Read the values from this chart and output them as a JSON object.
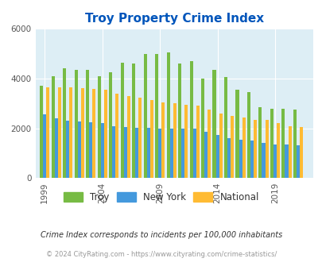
{
  "title": "Troy Property Crime Index",
  "years": [
    1999,
    2000,
    2001,
    2002,
    2003,
    2004,
    2005,
    2006,
    2007,
    2008,
    2009,
    2010,
    2011,
    2012,
    2013,
    2014,
    2015,
    2016,
    2017,
    2018,
    2019,
    2020,
    2021
  ],
  "troy": [
    3700,
    4100,
    4400,
    4350,
    4350,
    4100,
    4250,
    4650,
    4600,
    5000,
    5000,
    5050,
    4600,
    4700,
    4000,
    4350,
    4050,
    3550,
    3450,
    2850,
    2800,
    2800,
    2750
  ],
  "new_york": [
    2550,
    2400,
    2300,
    2275,
    2250,
    2200,
    2100,
    2050,
    2020,
    2020,
    1980,
    1980,
    1980,
    1980,
    1870,
    1720,
    1620,
    1530,
    1500,
    1420,
    1350,
    1350,
    1330
  ],
  "national": [
    3650,
    3660,
    3650,
    3620,
    3600,
    3550,
    3400,
    3300,
    3250,
    3150,
    3050,
    3000,
    2950,
    2900,
    2760,
    2600,
    2490,
    2430,
    2350,
    2350,
    2200,
    2100,
    2050
  ],
  "troy_color": "#77bb44",
  "ny_color": "#4499dd",
  "nat_color": "#ffbb33",
  "bg_color": "#ddeef5",
  "title_color": "#0055bb",
  "subtitle": "Crime Index corresponds to incidents per 100,000 inhabitants",
  "footer": "© 2024 CityRating.com - https://www.cityrating.com/crime-statistics/",
  "ylim": [
    0,
    6000
  ],
  "yticks": [
    0,
    2000,
    4000,
    6000
  ],
  "bar_width": 0.28,
  "xlabel_ticks": [
    1999,
    2004,
    2009,
    2014,
    2019
  ]
}
